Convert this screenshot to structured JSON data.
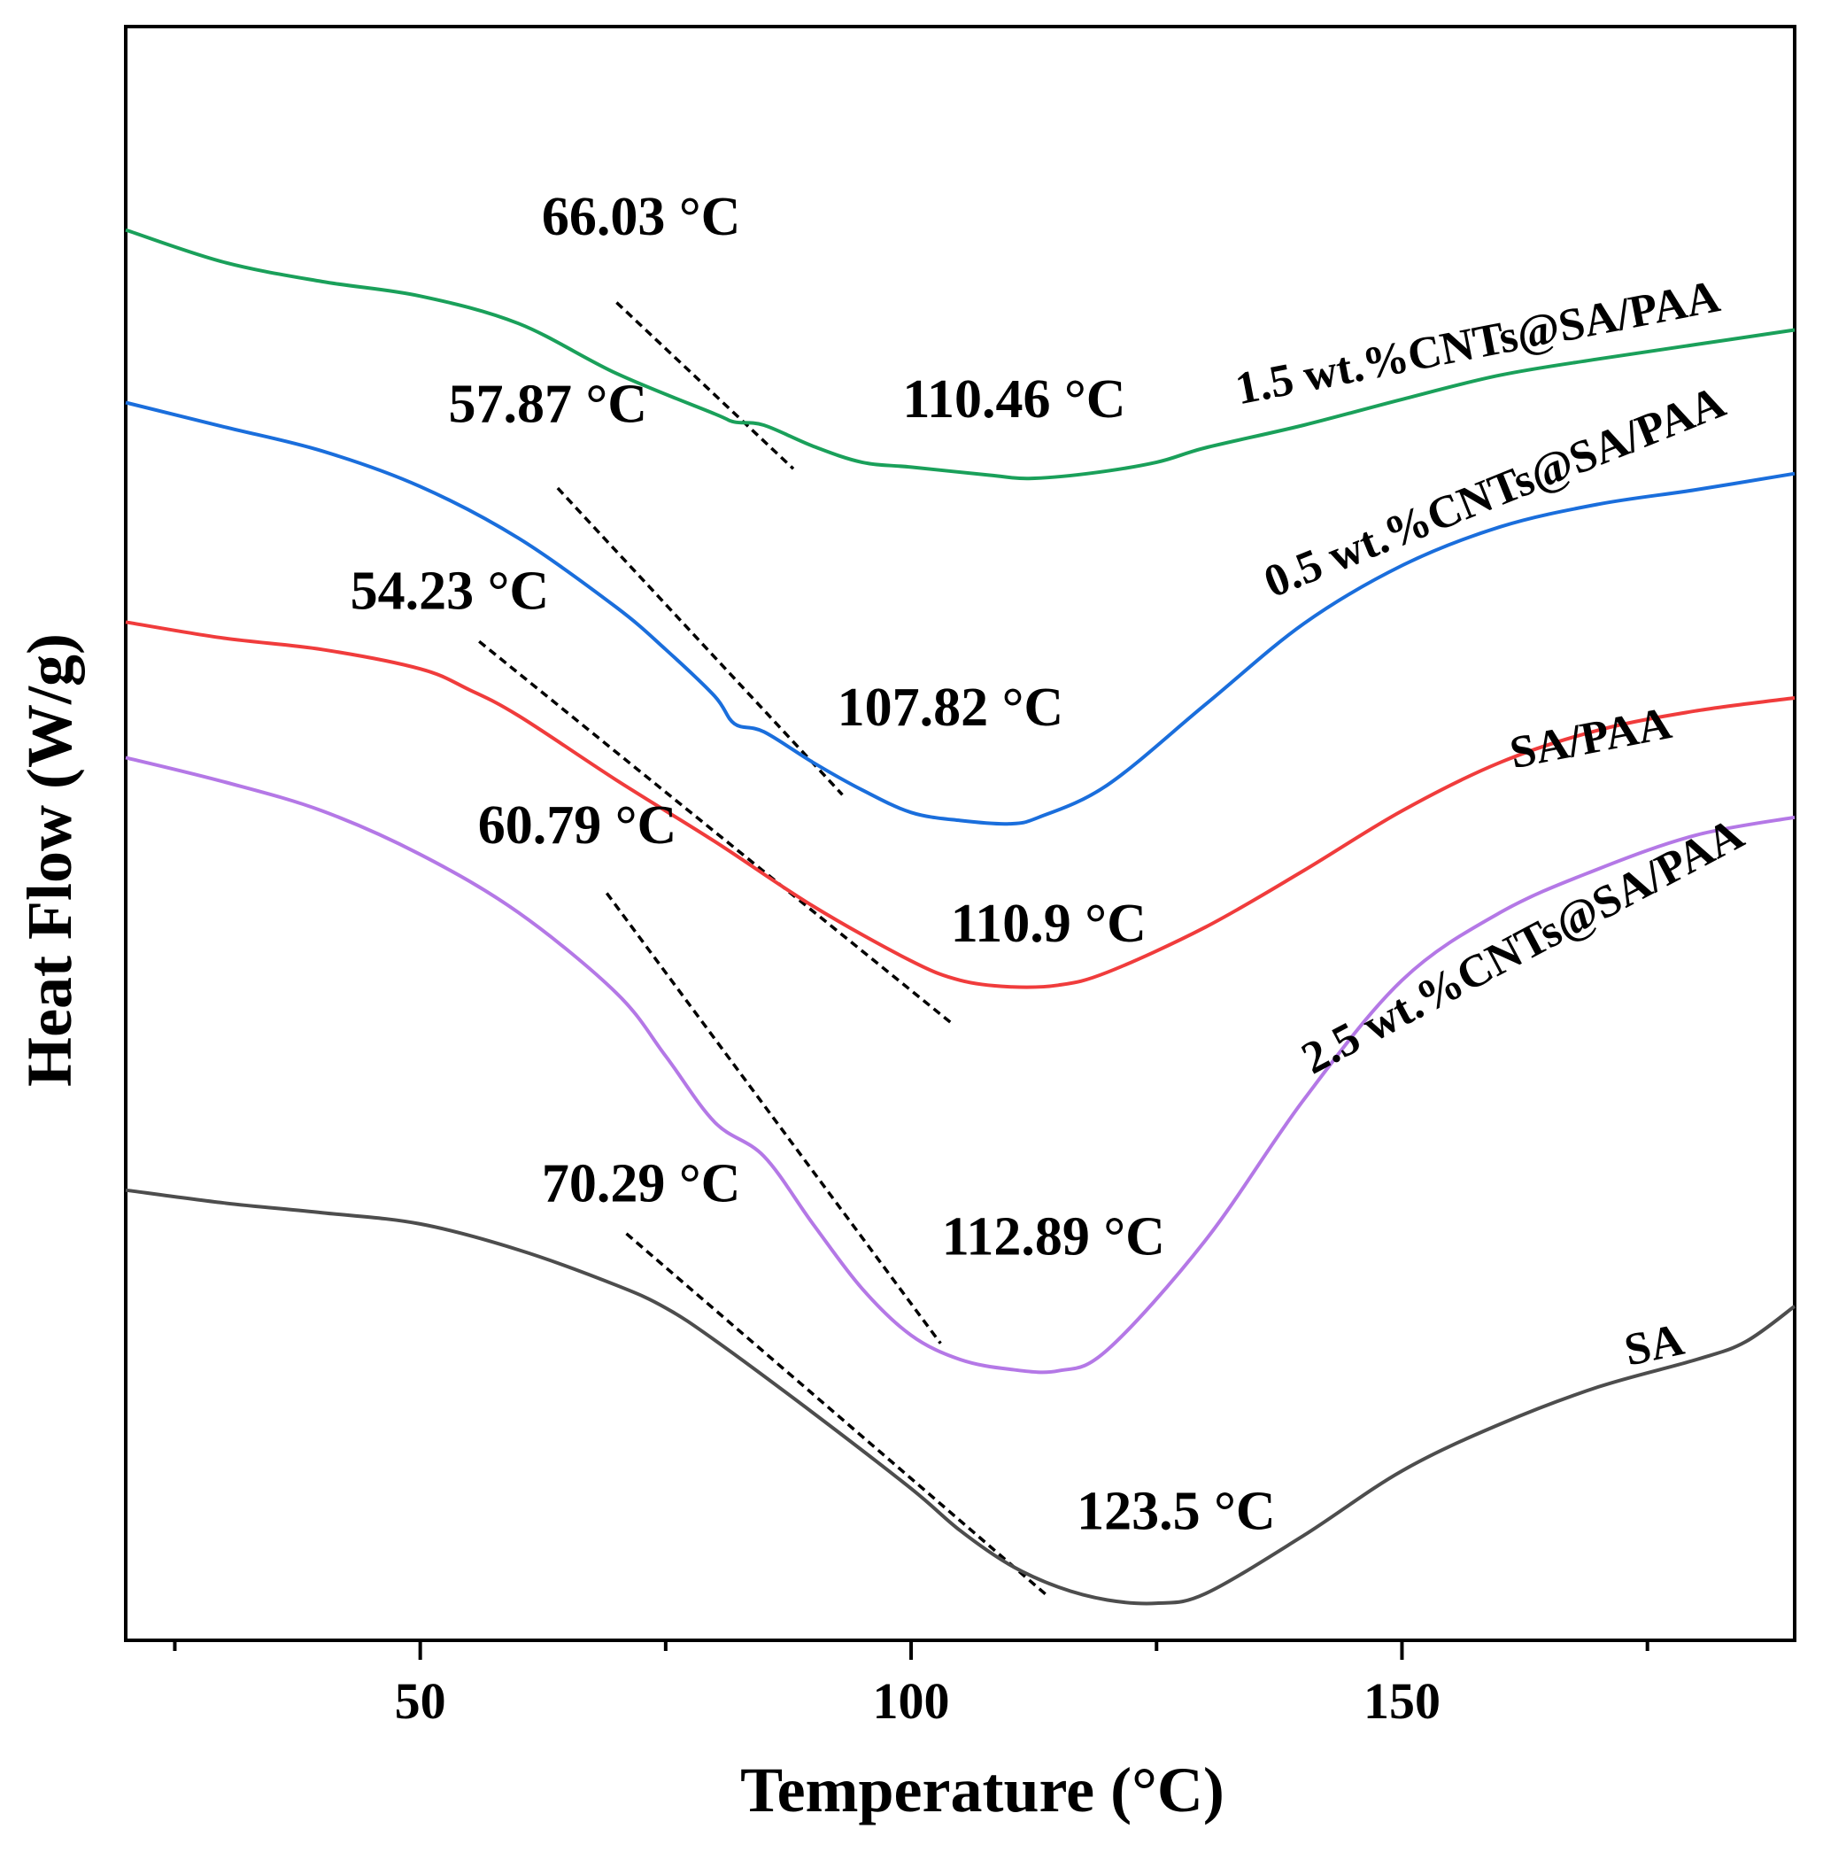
{
  "chart_data": {
    "type": "line",
    "xlabel": "Temperature (°C)",
    "ylabel": "Heat Flow (W/g)",
    "xlim": [
      20,
      190
    ],
    "ylim": [
      0,
      100
    ],
    "x_ticks_major": [
      50,
      100,
      150
    ],
    "x_ticks_minor": [
      25,
      75,
      125,
      175
    ],
    "y_ticks": "none",
    "grid": false,
    "legend": "none",
    "series": [
      {
        "name": "1.5 wt.%CNTs@SA/PAA",
        "color": "#1aa05a",
        "points": [
          [
            20,
            87.4
          ],
          [
            30,
            85.4
          ],
          [
            40,
            84.2
          ],
          [
            50,
            83.3
          ],
          [
            60,
            81.6
          ],
          [
            70,
            78.5
          ],
          [
            80,
            76.0
          ],
          [
            82,
            75.5
          ],
          [
            85,
            75.3
          ],
          [
            90,
            74.0
          ],
          [
            95,
            73.0
          ],
          [
            100,
            72.7
          ],
          [
            108,
            72.2
          ],
          [
            112,
            72.0
          ],
          [
            118,
            72.3
          ],
          [
            125,
            73.0
          ],
          [
            130,
            73.9
          ],
          [
            140,
            75.3
          ],
          [
            150,
            76.9
          ],
          [
            160,
            78.4
          ],
          [
            170,
            79.4
          ],
          [
            180,
            80.3
          ],
          [
            190,
            81.2
          ]
        ]
      },
      {
        "name": "0.5 wt.%CNTs@SA/PAA",
        "color": "#1a6edc",
        "points": [
          [
            20,
            76.7
          ],
          [
            30,
            75.2
          ],
          [
            40,
            73.7
          ],
          [
            50,
            71.5
          ],
          [
            60,
            68.3
          ],
          [
            70,
            64.0
          ],
          [
            75,
            61.4
          ],
          [
            80,
            58.5
          ],
          [
            82,
            56.8
          ],
          [
            85,
            56.3
          ],
          [
            90,
            54.4
          ],
          [
            95,
            52.7
          ],
          [
            100,
            51.3
          ],
          [
            105,
            50.8
          ],
          [
            110,
            50.6
          ],
          [
            113,
            51.0
          ],
          [
            120,
            53.0
          ],
          [
            130,
            58.0
          ],
          [
            140,
            63.0
          ],
          [
            150,
            66.6
          ],
          [
            160,
            69.0
          ],
          [
            170,
            70.4
          ],
          [
            180,
            71.3
          ],
          [
            190,
            72.3
          ]
        ]
      },
      {
        "name": "SA/PAA",
        "color": "#f03c3c",
        "points": [
          [
            20,
            63.1
          ],
          [
            30,
            62.1
          ],
          [
            40,
            61.4
          ],
          [
            50,
            60.2
          ],
          [
            55,
            58.9
          ],
          [
            60,
            57.3
          ],
          [
            70,
            53.3
          ],
          [
            80,
            49.5
          ],
          [
            90,
            45.5
          ],
          [
            100,
            42.1
          ],
          [
            105,
            40.9
          ],
          [
            110,
            40.5
          ],
          [
            115,
            40.6
          ],
          [
            120,
            41.4
          ],
          [
            130,
            44.2
          ],
          [
            140,
            47.7
          ],
          [
            150,
            51.4
          ],
          [
            160,
            54.4
          ],
          [
            170,
            56.4
          ],
          [
            180,
            57.6
          ],
          [
            190,
            58.4
          ]
        ]
      },
      {
        "name": "2.5 wt.%CNTs@SA/PAA",
        "color": "#b478e6",
        "points": [
          [
            20,
            54.7
          ],
          [
            30,
            53.2
          ],
          [
            40,
            51.4
          ],
          [
            50,
            48.7
          ],
          [
            60,
            45.1
          ],
          [
            70,
            40.1
          ],
          [
            75,
            36.2
          ],
          [
            80,
            32.1
          ],
          [
            85,
            30.0
          ],
          [
            90,
            25.8
          ],
          [
            95,
            21.8
          ],
          [
            100,
            18.9
          ],
          [
            105,
            17.4
          ],
          [
            110,
            16.8
          ],
          [
            115,
            16.7
          ],
          [
            120,
            18.0
          ],
          [
            130,
            24.8
          ],
          [
            140,
            33.5
          ],
          [
            150,
            40.9
          ],
          [
            160,
            45.1
          ],
          [
            170,
            47.8
          ],
          [
            180,
            49.9
          ],
          [
            190,
            51.0
          ]
        ]
      },
      {
        "name": "SA",
        "color": "#4d4d4d",
        "points": [
          [
            20,
            27.9
          ],
          [
            30,
            27.1
          ],
          [
            40,
            26.5
          ],
          [
            50,
            25.8
          ],
          [
            60,
            24.2
          ],
          [
            70,
            22.0
          ],
          [
            75,
            20.6
          ],
          [
            80,
            18.6
          ],
          [
            90,
            14.1
          ],
          [
            100,
            9.4
          ],
          [
            105,
            6.8
          ],
          [
            110,
            4.7
          ],
          [
            115,
            3.3
          ],
          [
            120,
            2.5
          ],
          [
            125,
            2.3
          ],
          [
            130,
            2.9
          ],
          [
            140,
            6.5
          ],
          [
            150,
            10.5
          ],
          [
            160,
            13.4
          ],
          [
            170,
            15.7
          ],
          [
            180,
            17.4
          ],
          [
            185,
            18.5
          ],
          [
            190,
            20.7
          ]
        ]
      }
    ],
    "tangent_lines": [
      {
        "series": "1.5 wt.%CNTs@SA/PAA",
        "from": [
          70,
          82.9
        ],
        "to": [
          88,
          72.6
        ]
      },
      {
        "series": "0.5 wt.%CNTs@SA/PAA",
        "from": [
          64,
          71.4
        ],
        "to": [
          93,
          52.4
        ]
      },
      {
        "series": "SA/PAA",
        "from": [
          56,
          61.9
        ],
        "to": [
          104,
          38.3
        ]
      },
      {
        "series": "2.5 wt.%CNTs@SA/PAA",
        "from": [
          69,
          46.3
        ],
        "to": [
          103,
          18.4
        ]
      },
      {
        "series": "SA",
        "from": [
          71,
          25.2
        ],
        "to": [
          114,
          2.7
        ]
      }
    ],
    "annotations": [
      {
        "text": "66.03 °C",
        "x": 72.5,
        "y": 87.1
      },
      {
        "text": "110.46 °C",
        "x": 110.5,
        "y": 75.8
      },
      {
        "text": "57.87 °C",
        "x": 63,
        "y": 75.5
      },
      {
        "text": "107.82 °C",
        "x": 104,
        "y": 56.7
      },
      {
        "text": "54.23 °C",
        "x": 53,
        "y": 63.9
      },
      {
        "text": "110.9 °C",
        "x": 114,
        "y": 43.3
      },
      {
        "text": "60.79 °C",
        "x": 66,
        "y": 49.4
      },
      {
        "text": "112.89 °C",
        "x": 114.5,
        "y": 23.9
      },
      {
        "text": "70.29 °C",
        "x": 72.5,
        "y": 27.2
      },
      {
        "text": "123.5 °C",
        "x": 127,
        "y": 6.9
      }
    ],
    "series_labels": [
      {
        "text": "1.5 wt.%CNTs@SA/PAA",
        "x": 158,
        "y": 79.5,
        "rotate": -11
      },
      {
        "text": "0.5 wt.%CNTs@SA/PAA",
        "x": 160,
        "y": 70.3,
        "rotate": -22
      },
      {
        "text": "SA/PAA",
        "x": 169.5,
        "y": 55.0,
        "rotate": -11
      },
      {
        "text": "2.5 wt.%CNTs@SA/PAA",
        "x": 163,
        "y": 42.2,
        "rotate": -28
      },
      {
        "text": "SA",
        "x": 176,
        "y": 17.4,
        "rotate": -12
      }
    ]
  }
}
